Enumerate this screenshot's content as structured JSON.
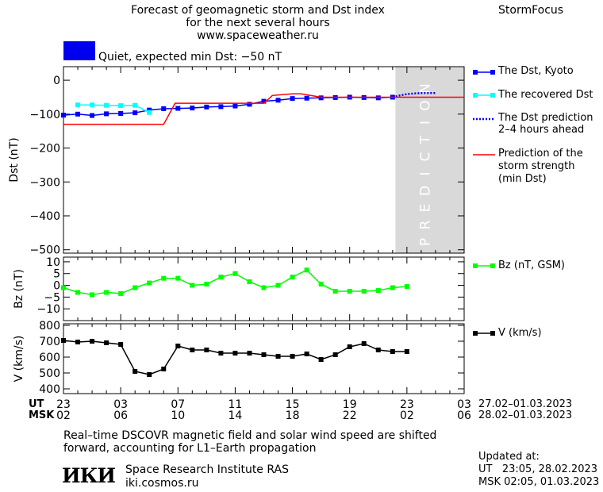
{
  "header": {
    "title_lines": [
      "Forecast of geomagnetic storm and Dst index",
      "for the next several hours",
      "www.spaceweather.ru"
    ],
    "brand": "StormFocus",
    "status_text": "Quiet, expected min Dst: −50 nT",
    "status_color": "#0000ee"
  },
  "legend": {
    "dst_kyoto": "The Dst, Kyoto",
    "dst_recovered": "The recovered Dst",
    "dst_prediction": [
      "The Dst prediction",
      "2–4 hours ahead"
    ],
    "min_dst": [
      "Prediction of the",
      "storm strength",
      "(min Dst)"
    ],
    "bz": "Bz (nT, GSM)",
    "v": "V (km/s)"
  },
  "colors": {
    "dst_kyoto": "#0000ff",
    "dst_recovered": "#00ffff",
    "dst_prediction": "#0000ff",
    "min_dst": "#ff0000",
    "bz": "#00ff00",
    "v": "#000000",
    "prediction_band": "#d9d9d9"
  },
  "prediction_band_label": "PREDICTION",
  "time_axis": {
    "ut_label": "UT",
    "msk_label": "MSK",
    "ut_ticks": [
      "23",
      "03",
      "07",
      "11",
      "15",
      "19",
      "23",
      "03"
    ],
    "msk_ticks": [
      "02",
      "06",
      "10",
      "14",
      "18",
      "22",
      "02",
      "06"
    ],
    "ut_dates": "27.02–01.03.2023",
    "msk_dates": "28.02–01.03.2023"
  },
  "footer": {
    "note_lines": [
      "Real–time DSCOVR magnetic field and solar wind speed are shifted",
      "forward, accounting for L1–Earth propagation"
    ],
    "logo_text": "ИКИ",
    "institute": "Space Research Institute RAS",
    "site": "iki.cosmos.ru",
    "updated_label": "Updated at:",
    "updated_ut": "UT   23:05, 28.02.2023",
    "updated_msk": "MSK 02:05, 01.03.2023"
  },
  "chart_data": [
    {
      "type": "line",
      "ylabel": "Dst (nT)",
      "ylim": [
        -510,
        40
      ],
      "yticks": [
        0,
        -100,
        -200,
        -300,
        -400,
        -500
      ],
      "x_range_hours": [
        0,
        28
      ],
      "prediction_from_hour": 23.2,
      "series": [
        {
          "name": "The Dst, Kyoto",
          "x": [
            0,
            1,
            2,
            3,
            4,
            5,
            6,
            7,
            8,
            9,
            10,
            11,
            12,
            13,
            14,
            15,
            16,
            17,
            18,
            19,
            20,
            21,
            22,
            23
          ],
          "values": [
            -103,
            -100,
            -104,
            -99,
            -98,
            -96,
            -88,
            -84,
            -83,
            -82,
            -79,
            -78,
            -76,
            -71,
            -62,
            -59,
            -54,
            -53,
            -52,
            -51,
            -50,
            -51,
            -52,
            -50
          ]
        },
        {
          "name": "The recovered Dst",
          "x": [
            1,
            2,
            3,
            4,
            5,
            6
          ],
          "values": [
            -73,
            -73,
            -74,
            -75,
            -74,
            -95
          ]
        },
        {
          "name": "The Dst prediction 2–4 hours ahead",
          "x": [
            23,
            23.5,
            24,
            24.5,
            25,
            25.5,
            26
          ],
          "values": [
            -50,
            -45,
            -41,
            -39,
            -38,
            -38,
            -38
          ]
        },
        {
          "name": "Prediction of the storm strength (min Dst)",
          "x": [
            0,
            7.0,
            7.8,
            14.0,
            14.6,
            16.0,
            16.6,
            18.0,
            28
          ],
          "values": [
            -130,
            -130,
            -68,
            -68,
            -45,
            -40,
            -40,
            -50,
            -50
          ]
        }
      ]
    },
    {
      "type": "line",
      "ylabel": "Bz (nT)",
      "ylim": [
        -15,
        12
      ],
      "yticks": [
        10,
        5,
        0,
        -5,
        -10
      ],
      "series": [
        {
          "name": "Bz (nT, GSM)",
          "x": [
            0,
            1,
            2,
            3,
            4,
            5,
            6,
            7,
            8,
            9,
            10,
            11,
            12,
            13,
            14,
            15,
            16,
            17,
            18,
            19,
            20,
            21,
            22,
            23,
            24
          ],
          "values": [
            -1,
            -3,
            -4,
            -3,
            -3.5,
            -1,
            1,
            3,
            3,
            0,
            0.5,
            3.5,
            5,
            1.5,
            -1,
            0,
            3.5,
            6.5,
            0.5,
            -2.5,
            -2.5,
            -2.5,
            -2.2,
            -1,
            -0.5
          ]
        }
      ]
    },
    {
      "type": "line",
      "ylabel": "V (km/s)",
      "ylim": [
        370,
        810
      ],
      "yticks": [
        800,
        700,
        600,
        500,
        400
      ],
      "series": [
        {
          "name": "V (km/s)",
          "x": [
            0,
            1,
            2,
            3,
            4,
            5,
            6,
            7,
            8,
            9,
            10,
            11,
            12,
            13,
            14,
            15,
            16,
            17,
            18,
            19,
            20,
            21,
            22,
            23,
            24
          ],
          "values": [
            705,
            695,
            700,
            690,
            680,
            510,
            490,
            525,
            670,
            645,
            645,
            625,
            625,
            625,
            615,
            605,
            605,
            620,
            585,
            615,
            665,
            685,
            645,
            635,
            635
          ]
        }
      ]
    }
  ]
}
